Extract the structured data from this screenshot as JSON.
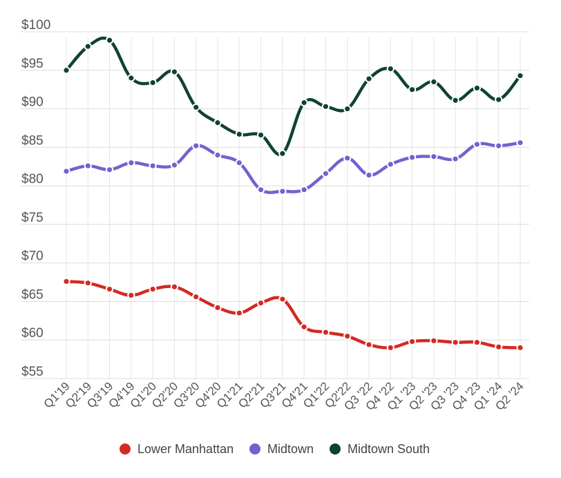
{
  "chart_data": {
    "type": "line",
    "title": "",
    "xlabel": "",
    "ylabel": "",
    "ylim": [
      55,
      100
    ],
    "y_ticks": [
      "$100",
      "$95",
      "$90",
      "$85",
      "$80",
      "$75",
      "$70",
      "$65",
      "$60",
      "$55"
    ],
    "categories": [
      "Q1'19",
      "Q2'19",
      "Q3'19",
      "Q4'19",
      "Q1'20",
      "Q2'20",
      "Q3'20",
      "Q4'20",
      "Q1'21",
      "Q2'21",
      "Q3'21",
      "Q4'21",
      "Q1'22",
      "Q2'22",
      "Q3 '22",
      "Q4 '22",
      "Q1 '23",
      "Q2 '23",
      "Q3 '23",
      "Q4 '23",
      "Q1 '24",
      "Q2 '24"
    ],
    "grid": true,
    "legend_position": "bottom",
    "series": [
      {
        "name": "Lower Manhattan",
        "color": "#d42a22",
        "values": [
          67.6,
          67.4,
          66.6,
          65.8,
          66.6,
          66.9,
          65.6,
          64.2,
          63.5,
          64.8,
          65.3,
          61.7,
          61.0,
          60.5,
          59.4,
          59.0,
          59.8,
          59.9,
          59.7,
          59.7,
          59.1,
          59.0
        ]
      },
      {
        "name": "Midtown",
        "color": "#7560d0",
        "values": [
          81.9,
          82.6,
          82.1,
          83.0,
          82.6,
          82.7,
          85.2,
          84.0,
          83.0,
          79.5,
          79.3,
          79.5,
          81.6,
          83.6,
          81.4,
          82.8,
          83.7,
          83.8,
          83.5,
          85.4,
          85.2,
          85.6
        ]
      },
      {
        "name": "Midtown South",
        "color": "#0f4330",
        "values": [
          95.0,
          98.1,
          98.9,
          94.0,
          93.4,
          94.8,
          90.2,
          88.2,
          86.7,
          86.6,
          84.2,
          90.8,
          90.3,
          90.0,
          93.9,
          95.2,
          92.5,
          93.5,
          91.1,
          92.7,
          91.2,
          94.3
        ]
      }
    ]
  }
}
